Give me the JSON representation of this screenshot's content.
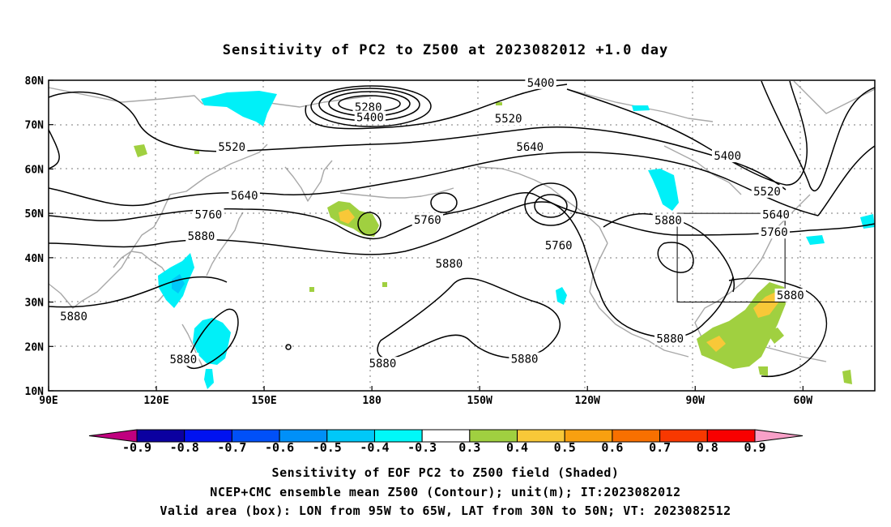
{
  "title": "Sensitivity of PC2 to Z500 at 2023082012 +1.0 day",
  "map": {
    "lon_labels": [
      {
        "lon": 90,
        "text": "90E"
      },
      {
        "lon": 120,
        "text": "120E"
      },
      {
        "lon": 150,
        "text": "150E"
      },
      {
        "lon": 180,
        "text": "180"
      },
      {
        "lon": 210,
        "text": "150W"
      },
      {
        "lon": 240,
        "text": "120W"
      },
      {
        "lon": 270,
        "text": "90W"
      },
      {
        "lon": 300,
        "text": "60W"
      }
    ],
    "lat_labels": [
      {
        "lat": 80,
        "text": "80N"
      },
      {
        "lat": 70,
        "text": "70N"
      },
      {
        "lat": 60,
        "text": "60N"
      },
      {
        "lat": 50,
        "text": "50N"
      },
      {
        "lat": 40,
        "text": "40N"
      },
      {
        "lat": 30,
        "text": "30N"
      },
      {
        "lat": 20,
        "text": "20N"
      },
      {
        "lat": 10,
        "text": "10N"
      }
    ],
    "contour_labels": [
      {
        "text": "5400",
        "lon": 227,
        "lat": 79.3
      },
      {
        "text": "5280",
        "lon": 179,
        "lat": 73.8
      },
      {
        "text": "5400",
        "lon": 179.5,
        "lat": 71.5
      },
      {
        "text": "5520",
        "lon": 218,
        "lat": 71.2
      },
      {
        "text": "5520",
        "lon": 141,
        "lat": 64.8
      },
      {
        "text": "5640",
        "lon": 224,
        "lat": 64.8
      },
      {
        "text": "5400",
        "lon": 279,
        "lat": 62.8
      },
      {
        "text": "5520",
        "lon": 290,
        "lat": 54.8
      },
      {
        "text": "5640",
        "lon": 144.5,
        "lat": 53.9
      },
      {
        "text": "5760",
        "lon": 134.5,
        "lat": 49.6
      },
      {
        "text": "5760",
        "lon": 195.5,
        "lat": 48.4
      },
      {
        "text": "5880",
        "lon": 262.5,
        "lat": 48.3
      },
      {
        "text": "5640",
        "lon": 292.5,
        "lat": 49.6
      },
      {
        "text": "5760",
        "lon": 292,
        "lat": 45.6
      },
      {
        "text": "5880",
        "lon": 132.5,
        "lat": 44.7
      },
      {
        "text": "5760",
        "lon": 232,
        "lat": 42.6
      },
      {
        "text": "5880",
        "lon": 201.5,
        "lat": 38.5
      },
      {
        "text": "5880",
        "lon": 296.5,
        "lat": 31.4
      },
      {
        "text": "5880",
        "lon": 97,
        "lat": 26.6
      },
      {
        "text": "5880",
        "lon": 263,
        "lat": 21.6
      },
      {
        "text": "5880",
        "lon": 127.5,
        "lat": 16.9
      },
      {
        "text": "5880",
        "lon": 183,
        "lat": 16.0
      },
      {
        "text": "5880",
        "lon": 222.5,
        "lat": 17.0
      }
    ],
    "valid_box": {
      "lon_min": 265,
      "lon_max": 295,
      "lat_min": 30,
      "lat_max": 50
    }
  },
  "colorbar": {
    "colors": [
      "#0b00a0",
      "#0012f0",
      "#0050f8",
      "#0090f8",
      "#00c8f8",
      "#00f8f8",
      "#ffffff",
      "#a0d040",
      "#f8c838",
      "#f8a010",
      "#f87000",
      "#f83800",
      "#f80000"
    ],
    "left_tip": "#c0007f",
    "right_tip": "#f8a0c8",
    "labels": [
      "-0.9",
      "-0.8",
      "-0.7",
      "-0.6",
      "-0.5",
      "-0.4",
      "-0.3",
      "0.3",
      "0.4",
      "0.5",
      "0.6",
      "0.7",
      "0.8",
      "0.9"
    ]
  },
  "captions": {
    "line1": "Sensitivity of EOF PC2 to Z500 field (Shaded)",
    "line2": "NCEP+CMC ensemble mean Z500 (Contour); unit(m); IT:2023082012",
    "line3": "Valid area (box): LON from 95W to 65W, LAT from 30N to 50N; VT: 2023082512"
  }
}
